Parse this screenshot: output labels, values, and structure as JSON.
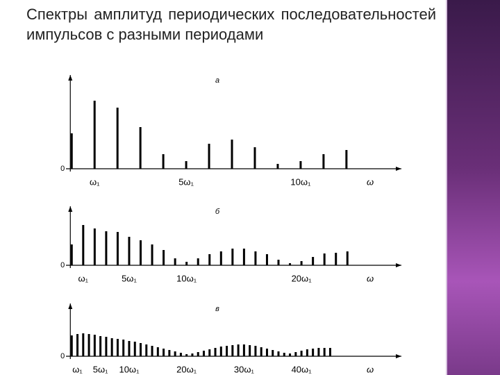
{
  "slide_title": "Спектры амплитуд периодических последовательностей импульсов с разными периодами",
  "chart_data": [
    {
      "type": "bar",
      "panel_label": "а",
      "x_label": "ω",
      "color": "#000000",
      "x": [
        0,
        1,
        2,
        3,
        4,
        5,
        6,
        7,
        8,
        9,
        10,
        11,
        12
      ],
      "values": [
        51,
        98,
        88,
        60,
        21,
        11,
        36,
        42,
        31,
        7,
        11,
        21,
        27
      ],
      "xlim": [
        -0.25,
        14.4
      ],
      "ylim": [
        0,
        135
      ],
      "yticks": [
        0
      ],
      "xticks": [
        {
          "value": 1,
          "label": "ω₁"
        },
        {
          "value": 5,
          "label": "5ω₁"
        },
        {
          "value": 10,
          "label": "10ω₁"
        }
      ]
    },
    {
      "type": "bar",
      "panel_label": "б",
      "x_label": "ω",
      "color": "#000000",
      "x": [
        0,
        1,
        2,
        3,
        4,
        5,
        6,
        7,
        8,
        9,
        10,
        11,
        12,
        13,
        14,
        15,
        16,
        17,
        18,
        19,
        20,
        21,
        22,
        23,
        24
      ],
      "values": [
        30,
        58,
        53,
        49,
        48,
        41,
        36,
        30,
        22,
        10,
        5,
        10,
        16,
        20,
        24,
        24,
        20,
        16,
        8,
        3,
        6,
        12,
        17,
        18,
        20
      ],
      "xlim": [
        -0.5,
        28.7
      ],
      "ylim": [
        0,
        85
      ],
      "yticks": [
        0
      ],
      "xticks": [
        {
          "value": 1,
          "label": "ω₁"
        },
        {
          "value": 5,
          "label": "5ω₁"
        },
        {
          "value": 10,
          "label": "10ω₁"
        },
        {
          "value": 20,
          "label": "20ω₁"
        }
      ]
    },
    {
      "type": "bar",
      "panel_label": "в",
      "x_label": "ω",
      "color": "#000000",
      "x": [
        0,
        1,
        2,
        3,
        4,
        5,
        6,
        7,
        8,
        9,
        10,
        11,
        12,
        13,
        14,
        15,
        16,
        17,
        18,
        19,
        20,
        21,
        22,
        23,
        24,
        25,
        26,
        27,
        28,
        29,
        30,
        31,
        32,
        33,
        34,
        35,
        36,
        37,
        38,
        39,
        40,
        41,
        42,
        43,
        44,
        45
      ],
      "values": [
        30,
        32,
        33,
        32,
        31,
        29,
        28,
        26,
        25,
        24,
        22,
        21,
        19,
        17,
        15,
        13,
        11,
        9,
        7,
        5,
        3,
        4,
        6,
        8,
        10,
        12,
        14,
        15,
        16,
        17,
        17,
        16,
        15,
        13,
        11,
        9,
        7,
        5,
        4,
        6,
        8,
        10,
        11,
        12,
        12,
        12
      ],
      "xlim": [
        -1,
        57.4
      ],
      "ylim": [
        0,
        76
      ],
      "yticks": [
        0
      ],
      "xticks": [
        {
          "value": 1,
          "label": "ω₁"
        },
        {
          "value": 5,
          "label": "5ω₁"
        },
        {
          "value": 10,
          "label": "10ω₁"
        },
        {
          "value": 20,
          "label": "20ω₁"
        },
        {
          "value": 30,
          "label": "30ω₁"
        },
        {
          "value": 40,
          "label": "40ω₁"
        }
      ]
    }
  ]
}
